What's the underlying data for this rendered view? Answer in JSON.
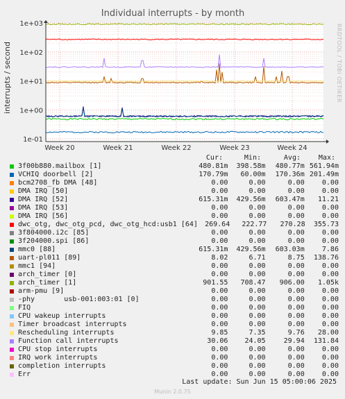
{
  "chart_data": {
    "type": "line",
    "title": "Individual interrupts - by month",
    "ylabel": "interrupts / second",
    "side_label": "RRDTOOL / TOBI OETIKER",
    "y_scale": "log",
    "ylim": [
      0.1,
      1000
    ],
    "y_ticks": [
      "1e+03",
      "1e+02",
      "1e+01",
      "1e+00",
      "1e-01"
    ],
    "x_ticks": [
      "Week 20",
      "Week 21",
      "Week 22",
      "Week 23",
      "Week 24"
    ],
    "grid": true,
    "legend_columns": [
      "Cur:",
      "Min:",
      "Avg:",
      "Max:"
    ],
    "series": [
      {
        "name": "3f00b880.mailbox [1]",
        "color": "#00cc00",
        "cur": "480.81m",
        "min": "398.58m",
        "avg": "480.77m",
        "max": "561.94m",
        "level": 0.48
      },
      {
        "name": "VCHIQ doorbell [2]",
        "color": "#0066b3",
        "cur": "170.79m",
        "min": "60.00m",
        "avg": "170.36m",
        "max": "201.49m",
        "level": 0.17
      },
      {
        "name": "bcm2708_fb DMA [48]",
        "color": "#ff8000",
        "cur": "0.00",
        "min": "0.00",
        "avg": "0.00",
        "max": "0.00",
        "level": 0
      },
      {
        "name": "DMA IRQ [50]",
        "color": "#ffcc00",
        "cur": "0.00",
        "min": "0.00",
        "avg": "0.00",
        "max": "0.00",
        "level": 0
      },
      {
        "name": "DMA IRQ [52]",
        "color": "#330099",
        "cur": "615.31m",
        "min": "429.56m",
        "avg": "603.47m",
        "max": "11.21",
        "level": 0.6
      },
      {
        "name": "DMA IRQ [53]",
        "color": "#990099",
        "cur": "0.00",
        "min": "0.00",
        "avg": "0.00",
        "max": "0.00",
        "level": 0
      },
      {
        "name": "DMA IRQ [56]",
        "color": "#ccff00",
        "cur": "0.00",
        "min": "0.00",
        "avg": "0.00",
        "max": "0.00",
        "level": 0
      },
      {
        "name": "dwc_otg, dwc_otg_pcd, dwc_otg_hcd:usb1 [64]",
        "color": "#ff0000",
        "cur": "269.64",
        "min": "222.77",
        "avg": "270.28",
        "max": "355.73",
        "level": 270
      },
      {
        "name": "3f804000.i2c [85]",
        "color": "#808080",
        "cur": "0.00",
        "min": "0.00",
        "avg": "0.00",
        "max": "0.00",
        "level": 0
      },
      {
        "name": "3f204000.spi [86]",
        "color": "#008f00",
        "cur": "0.00",
        "min": "0.00",
        "avg": "0.00",
        "max": "0.00",
        "level": 0
      },
      {
        "name": "mmc0 [88]",
        "color": "#00487d",
        "cur": "615.31m",
        "min": "429.56m",
        "avg": "603.03m",
        "max": "7.86",
        "level": 0.6
      },
      {
        "name": "uart-pl011 [89]",
        "color": "#b35a00",
        "cur": "8.02",
        "min": "6.71",
        "avg": "8.75",
        "max": "138.76",
        "level": 8.75
      },
      {
        "name": "mmc1 [94]",
        "color": "#b38f00",
        "cur": "0.00",
        "min": "0.00",
        "avg": "0.00",
        "max": "0.00",
        "level": 0
      },
      {
        "name": "arch_timer [0]",
        "color": "#6b006b",
        "cur": "0.00",
        "min": "0.00",
        "avg": "0.00",
        "max": "0.00",
        "level": 0
      },
      {
        "name": "arch_timer [1]",
        "color": "#8fb300",
        "cur": "901.55",
        "min": "708.47",
        "avg": "906.00",
        "max": "1.05k",
        "level": 906
      },
      {
        "name": "arm-pmu [9]",
        "color": "#b30000",
        "cur": "0.00",
        "min": "0.00",
        "avg": "0.00",
        "max": "0.00",
        "level": 0
      },
      {
        "name": "-phy       usb-001:003:01 [0]",
        "color": "#bebebe",
        "cur": "0.00",
        "min": "0.00",
        "avg": "0.00",
        "max": "0.00",
        "level": 0
      },
      {
        "name": "FIQ",
        "color": "#80ff80",
        "cur": "0.00",
        "min": "0.00",
        "avg": "0.00",
        "max": "0.00",
        "level": 0
      },
      {
        "name": "CPU wakeup interrupts",
        "color": "#80c9ff",
        "cur": "0.00",
        "min": "0.00",
        "avg": "0.00",
        "max": "0.00",
        "level": 0
      },
      {
        "name": "Timer broadcast interrupts",
        "color": "#ffc080",
        "cur": "0.00",
        "min": "0.00",
        "avg": "0.00",
        "max": "0.00",
        "level": 0
      },
      {
        "name": "Rescheduling interrupts",
        "color": "#ffe680",
        "cur": "9.85",
        "min": "7.35",
        "avg": "9.76",
        "max": "28.00",
        "level": 9.76
      },
      {
        "name": "Function call interrupts",
        "color": "#aa80ff",
        "cur": "30.06",
        "min": "24.05",
        "avg": "29.94",
        "max": "131.84",
        "level": 29.94
      },
      {
        "name": "CPU stop interrupts",
        "color": "#ee00cc",
        "cur": "0.00",
        "min": "0.00",
        "avg": "0.00",
        "max": "0.00",
        "level": 0
      },
      {
        "name": "IRQ work interrupts",
        "color": "#ff8080",
        "cur": "0.00",
        "min": "0.00",
        "avg": "0.00",
        "max": "0.00",
        "level": 0
      },
      {
        "name": "completion interrupts",
        "color": "#666600",
        "cur": "0.00",
        "min": "0.00",
        "avg": "0.00",
        "max": "0.00",
        "level": 0
      },
      {
        "name": "Err",
        "color": "#ffbfff",
        "cur": "0.00",
        "min": "0.00",
        "avg": "0.00",
        "max": "0.00",
        "level": 0
      }
    ]
  },
  "last_update": "Last update: Sun Jun 15 05:00:06 2025",
  "footer": "Munin 2.0.75"
}
